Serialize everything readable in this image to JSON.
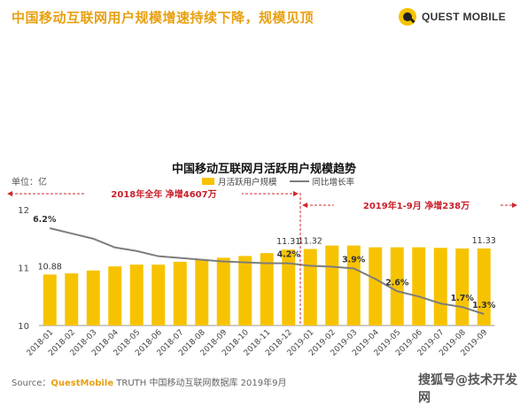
{
  "headline": "中国移动互联网用户规模增速持续下降，规模见顶",
  "logo_text": "QUEST MOBILE",
  "chart_data": {
    "type": "bar",
    "title": "中国移动互联网月活跃用户规模趋势",
    "unit_label": "单位：亿",
    "categories": [
      "2018-01",
      "2018-02",
      "2018-03",
      "2018-04",
      "2018-05",
      "2018-06",
      "2018-07",
      "2018-08",
      "2018-09",
      "2018-10",
      "2018-11",
      "2018-12",
      "2019-01",
      "2019-02",
      "2019-03",
      "2019-04",
      "2019-05",
      "2019-06",
      "2019-07",
      "2019-08",
      "2019-09"
    ],
    "series": [
      {
        "name": "月活跃用户规模",
        "type": "bar",
        "color": "#f7c300",
        "values": [
          10.88,
          10.9,
          10.95,
          11.02,
          11.05,
          11.05,
          11.1,
          11.13,
          11.17,
          11.2,
          11.25,
          11.31,
          11.32,
          11.38,
          11.38,
          11.35,
          11.35,
          11.35,
          11.34,
          11.33,
          11.33
        ],
        "labels": {
          "0": "10.88",
          "11": "11.31",
          "12": "11.32",
          "20": "11.33"
        }
      },
      {
        "name": "同比增长率",
        "type": "line",
        "color": "#7d7d7d",
        "values": [
          6.2,
          5.9,
          5.6,
          5.1,
          4.9,
          4.6,
          4.5,
          4.4,
          4.3,
          4.25,
          4.2,
          4.2,
          4.05,
          4.0,
          3.9,
          3.3,
          2.6,
          2.3,
          1.9,
          1.7,
          1.3
        ],
        "labels": {
          "0": "6.2%",
          "11": "4.2%",
          "14": "3.9%",
          "16": "2.6%",
          "19": "1.7%",
          "20": "1.3%"
        }
      }
    ],
    "y_ticks": [
      "10",
      "11",
      "12"
    ],
    "ylim": [
      10,
      12
    ],
    "annotations": {
      "range_2018": "2018年全年  净增4607万",
      "range_2019": "2019年1-9月  净增238万"
    }
  },
  "source": {
    "prefix": "Source：",
    "brand": "QuestMobile",
    "text": " TRUTH 中国移动互联网数据库 2019年9月"
  },
  "watermark": "搜狐号@技术开发网"
}
